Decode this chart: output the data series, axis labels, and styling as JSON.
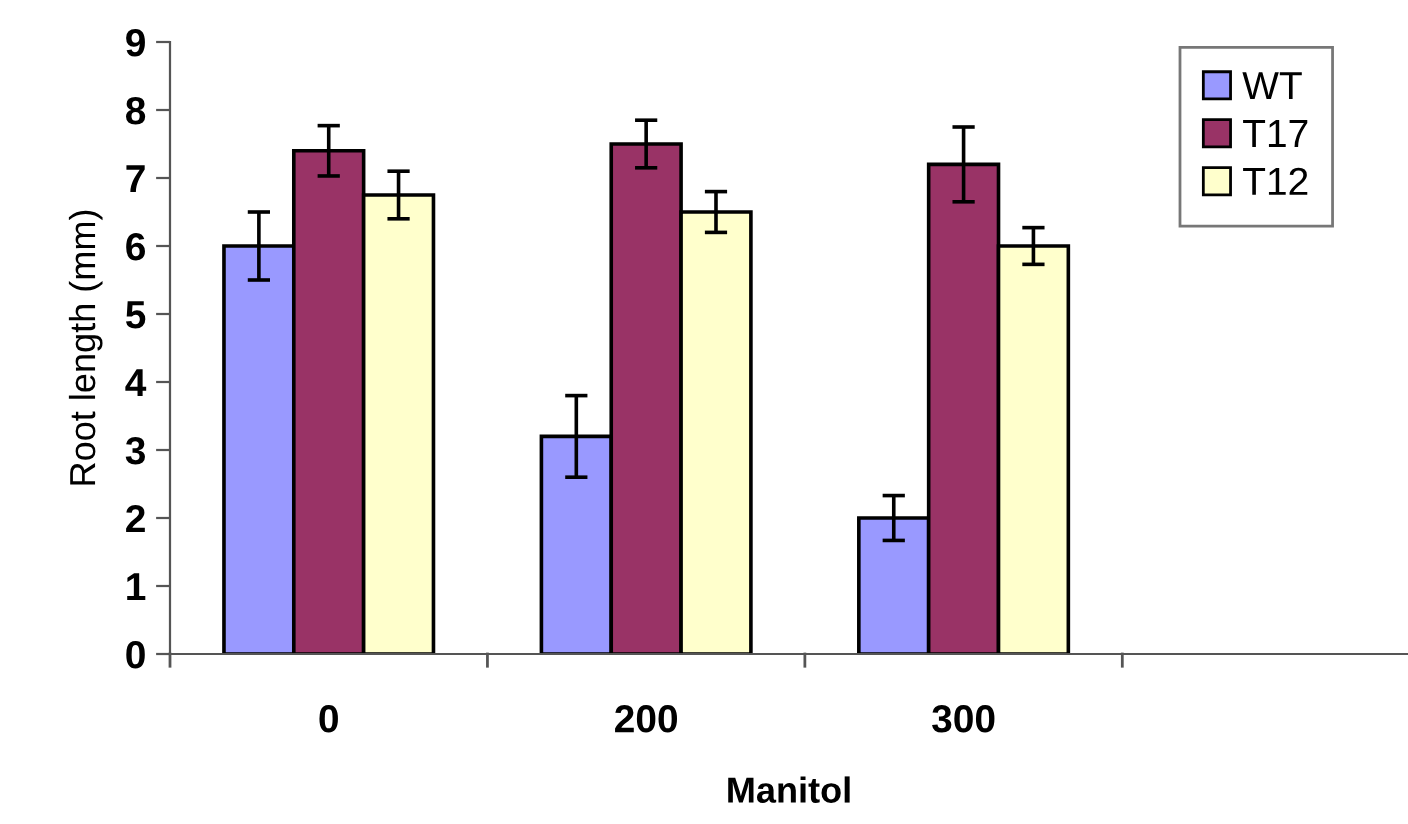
{
  "chart_data": {
    "type": "bar",
    "xlabel": "Manitol",
    "ylabel": "Root length (mm)",
    "categories": [
      "0",
      "200",
      "300",
      null
    ],
    "series": [
      {
        "name": "WT",
        "color": "#9999ff",
        "values": [
          6.0,
          3.2,
          2.0,
          null
        ],
        "errors": [
          0.5,
          0.6,
          0.33,
          null
        ]
      },
      {
        "name": "T17",
        "color": "#993366",
        "values": [
          7.4,
          7.5,
          7.2,
          null
        ],
        "errors": [
          0.37,
          0.35,
          0.55,
          null
        ]
      },
      {
        "name": "T12",
        "color": "#ffffcc",
        "values": [
          6.75,
          6.5,
          6.0,
          null
        ],
        "errors": [
          0.35,
          0.3,
          0.27,
          null
        ]
      }
    ],
    "ylim": [
      0,
      9
    ],
    "yticks": [
      0,
      1,
      2,
      3,
      4,
      5,
      6,
      7,
      8,
      9
    ],
    "grid": false,
    "legend": "top right"
  }
}
